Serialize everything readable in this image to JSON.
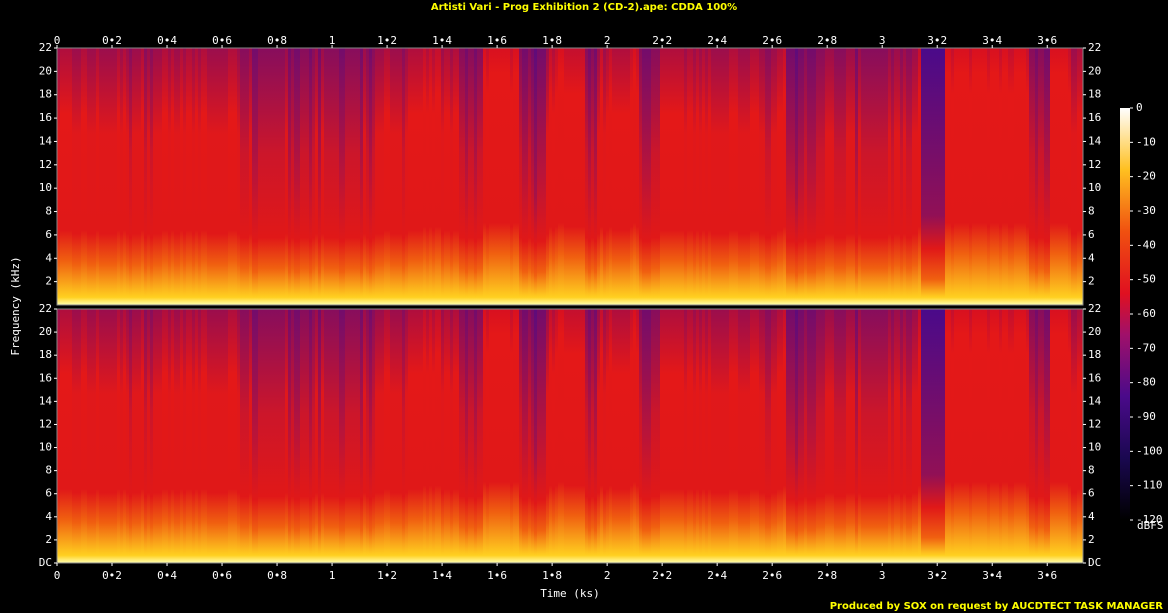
{
  "chart_data": {
    "type": "spectrogram",
    "title": "Artisti Vari - Prog Exhibition 2 (CD-2).ape: CDDA 100%",
    "xlabel": "Time (ks)",
    "ylabel": "Frequency (kHz)",
    "xlim": [
      0,
      3.73
    ],
    "xticks": [
      0,
      {
        "value": 0.2,
        "label": "0•2"
      },
      {
        "value": 0.4,
        "label": "0•4"
      },
      {
        "value": 0.6,
        "label": "0•6"
      },
      {
        "value": 0.8,
        "label": "0•8"
      },
      1,
      {
        "value": 1.2,
        "label": "1•2"
      },
      {
        "value": 1.4,
        "label": "1•4"
      },
      {
        "value": 1.6,
        "label": "1•6"
      },
      {
        "value": 1.8,
        "label": "1•8"
      },
      2,
      {
        "value": 2.2,
        "label": "2•2"
      },
      {
        "value": 2.4,
        "label": "2•4"
      },
      {
        "value": 2.6,
        "label": "2•6"
      },
      {
        "value": 2.8,
        "label": "2•8"
      },
      3,
      {
        "value": 3.2,
        "label": "3•2"
      },
      {
        "value": 3.4,
        "label": "3•4"
      },
      {
        "value": 3.6,
        "label": "3•6"
      }
    ],
    "ylim": [
      0,
      22
    ],
    "channels": [
      {
        "yticks": [
          2,
          4,
          6,
          8,
          10,
          12,
          14,
          16,
          18,
          20,
          22
        ]
      },
      {
        "yticks": [
          {
            "value": 0,
            "label": "DC"
          },
          2,
          4,
          6,
          8,
          10,
          12,
          14,
          16,
          18,
          20,
          22
        ]
      }
    ],
    "colorbar": {
      "label": "dBFS",
      "lim": [
        -120,
        0
      ],
      "ticks": [
        0,
        -10,
        -20,
        -30,
        -40,
        -50,
        -60,
        -70,
        -80,
        -90,
        -100,
        -110,
        -120
      ]
    },
    "footer": "Produced by SOX on request by AUCDTECT TASK MANAGER"
  }
}
